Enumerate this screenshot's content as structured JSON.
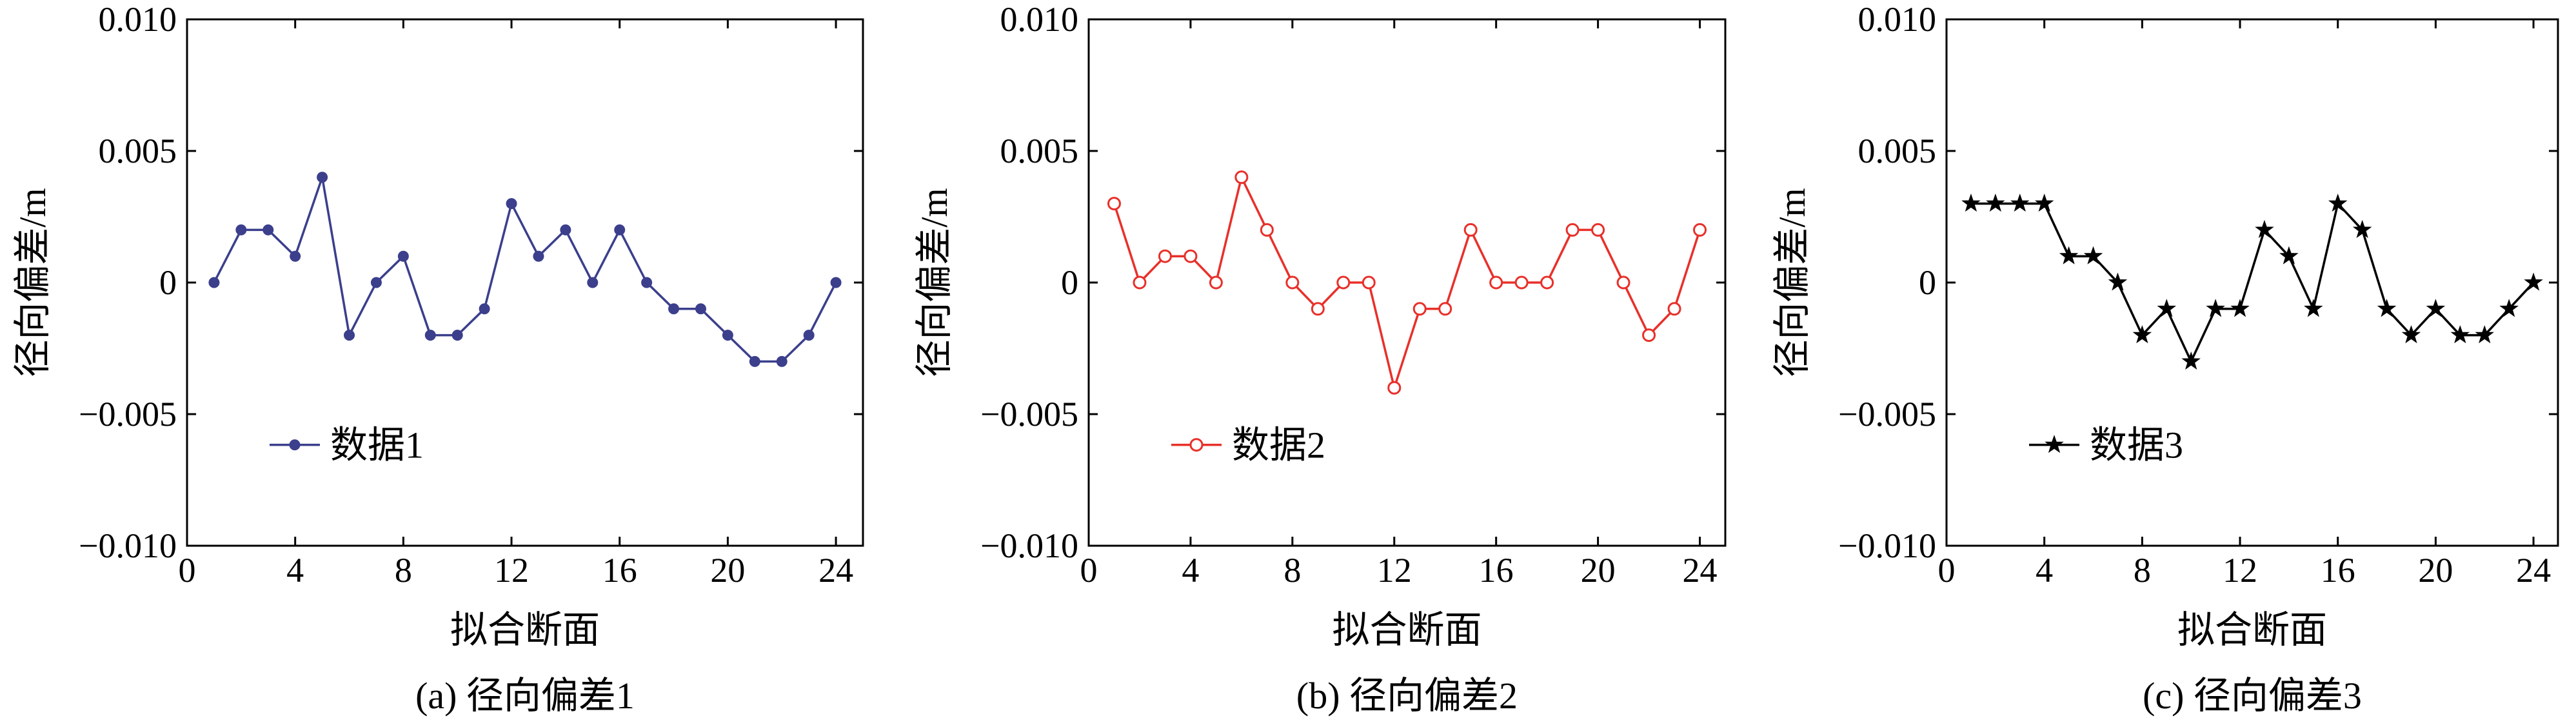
{
  "chart_data": [
    {
      "type": "line",
      "caption": "(a) 径向偏差1",
      "xlabel": "拟合断面",
      "ylabel": "径向偏差/m",
      "xlim": [
        0,
        25
      ],
      "ylim": [
        -0.01,
        0.01
      ],
      "x_ticks": [
        {
          "value": 0,
          "label": "0"
        },
        {
          "value": 4,
          "label": "4"
        },
        {
          "value": 8,
          "label": "8"
        },
        {
          "value": 12,
          "label": "12"
        },
        {
          "value": 16,
          "label": "16"
        },
        {
          "value": 20,
          "label": "20"
        },
        {
          "value": 24,
          "label": "24"
        }
      ],
      "y_ticks": [
        {
          "value": 0.01,
          "label": "0.010"
        },
        {
          "value": 0.005,
          "label": "0.005"
        },
        {
          "value": 0,
          "label": "0"
        },
        {
          "value": -0.005,
          "label": "−0.005"
        },
        {
          "value": -0.01,
          "label": "−0.010"
        }
      ],
      "grid": false,
      "legend_position": "lower-left",
      "series": [
        {
          "name": "数据1",
          "color": "#3b3f8c",
          "marker": "dot",
          "x": [
            1,
            2,
            3,
            4,
            5,
            6,
            7,
            8,
            9,
            10,
            11,
            12,
            13,
            14,
            15,
            16,
            17,
            18,
            19,
            20,
            21,
            22,
            23,
            24
          ],
          "y": [
            0,
            0.002,
            0.002,
            0.001,
            0.004,
            -0.002,
            0,
            0.001,
            -0.002,
            -0.002,
            -0.001,
            0.003,
            0.001,
            0.002,
            0,
            0.002,
            0,
            -0.001,
            -0.001,
            -0.002,
            -0.003,
            -0.003,
            -0.002,
            0
          ]
        }
      ]
    },
    {
      "type": "line",
      "caption": "(b) 径向偏差2",
      "xlabel": "拟合断面",
      "ylabel": "径向偏差/m",
      "xlim": [
        0,
        25
      ],
      "ylim": [
        -0.01,
        0.01
      ],
      "x_ticks": [
        {
          "value": 0,
          "label": "0"
        },
        {
          "value": 4,
          "label": "4"
        },
        {
          "value": 8,
          "label": "8"
        },
        {
          "value": 12,
          "label": "12"
        },
        {
          "value": 16,
          "label": "16"
        },
        {
          "value": 20,
          "label": "20"
        },
        {
          "value": 24,
          "label": "24"
        }
      ],
      "y_ticks": [
        {
          "value": 0.01,
          "label": "0.010"
        },
        {
          "value": 0.005,
          "label": "0.005"
        },
        {
          "value": 0,
          "label": "0"
        },
        {
          "value": -0.005,
          "label": "−0.005"
        },
        {
          "value": -0.01,
          "label": "−0.010"
        }
      ],
      "grid": false,
      "legend_position": "lower-left",
      "series": [
        {
          "name": "数据2",
          "color": "#e8302a",
          "marker": "circle",
          "x": [
            1,
            2,
            3,
            4,
            5,
            6,
            7,
            8,
            9,
            10,
            11,
            12,
            13,
            14,
            15,
            16,
            17,
            18,
            19,
            20,
            21,
            22,
            23,
            24
          ],
          "y": [
            0.003,
            0,
            0.001,
            0.001,
            0,
            0.004,
            0.002,
            0,
            -0.001,
            0,
            0,
            -0.004,
            -0.001,
            -0.001,
            0.002,
            0,
            0,
            0,
            0.002,
            0.002,
            0,
            -0.002,
            -0.001,
            0.002
          ]
        }
      ]
    },
    {
      "type": "line",
      "caption": "(c) 径向偏差3",
      "xlabel": "拟合断面",
      "ylabel": "径向偏差/m",
      "xlim": [
        0,
        25
      ],
      "ylim": [
        -0.01,
        0.01
      ],
      "x_ticks": [
        {
          "value": 0,
          "label": "0"
        },
        {
          "value": 4,
          "label": "4"
        },
        {
          "value": 8,
          "label": "8"
        },
        {
          "value": 12,
          "label": "12"
        },
        {
          "value": 16,
          "label": "16"
        },
        {
          "value": 20,
          "label": "20"
        },
        {
          "value": 24,
          "label": "24"
        }
      ],
      "y_ticks": [
        {
          "value": 0.01,
          "label": "0.010"
        },
        {
          "value": 0.005,
          "label": "0.005"
        },
        {
          "value": 0,
          "label": "0"
        },
        {
          "value": -0.005,
          "label": "−0.005"
        },
        {
          "value": -0.01,
          "label": "−0.010"
        }
      ],
      "grid": false,
      "legend_position": "lower-left",
      "series": [
        {
          "name": "数据3",
          "color": "#000000",
          "marker": "star",
          "x": [
            1,
            2,
            3,
            4,
            5,
            6,
            7,
            8,
            9,
            10,
            11,
            12,
            13,
            14,
            15,
            16,
            17,
            18,
            19,
            20,
            21,
            22,
            23,
            24
          ],
          "y": [
            0.003,
            0.003,
            0.003,
            0.003,
            0.001,
            0.001,
            0,
            -0.002,
            -0.001,
            -0.003,
            -0.001,
            -0.001,
            0.002,
            0.001,
            -0.001,
            0.003,
            0.002,
            -0.001,
            -0.002,
            -0.001,
            -0.002,
            -0.002,
            -0.001,
            0
          ]
        }
      ]
    }
  ]
}
